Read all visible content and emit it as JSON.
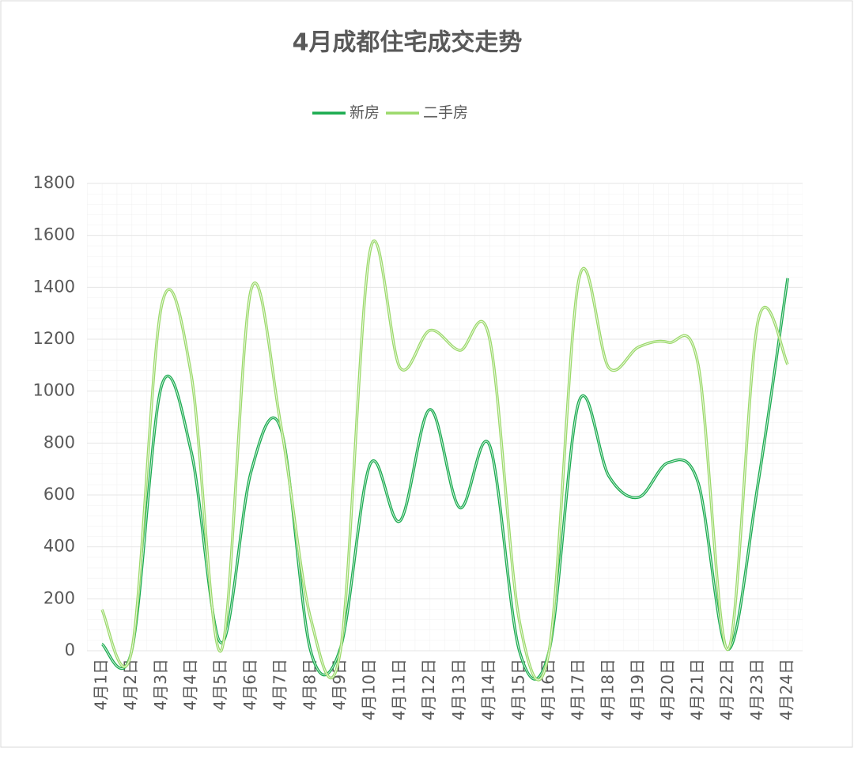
{
  "chart_data": {
    "type": "line",
    "title": "4月成都住宅成交走势",
    "categories": [
      "4月1日",
      "4月2日",
      "4月3日",
      "4月4日",
      "4月5日",
      "4月6日",
      "4月7日",
      "4月8日",
      "4月9日",
      "4月10日",
      "4月11日",
      "4月12日",
      "4月13日",
      "4月14日",
      "4月15日",
      "4月16日",
      "4月17日",
      "4月18日",
      "4月19日",
      "4月20日",
      "4月21日",
      "4月22日",
      "4月23日",
      "4月24日"
    ],
    "series": [
      {
        "name": "新房",
        "color": "#1aab4f",
        "values": [
          25,
          0,
          1020,
          765,
          30,
          688,
          856,
          0,
          10,
          719,
          500,
          929,
          551,
          792,
          0,
          0,
          960,
          673,
          591,
          725,
          646,
          5,
          640,
          1435
        ]
      },
      {
        "name": "二手房",
        "color": "#9bd96a",
        "values": [
          158,
          0,
          1328,
          1060,
          0,
          1389,
          870,
          125,
          0,
          1544,
          1090,
          1234,
          1157,
          1203,
          116,
          0,
          1432,
          1090,
          1170,
          1188,
          1100,
          5,
          1267,
          1103
        ]
      }
    ],
    "ylim": [
      0,
      1800
    ],
    "yticks": [
      0,
      200,
      400,
      600,
      800,
      1000,
      1200,
      1400,
      1600,
      1800
    ],
    "grid": true,
    "legend": "top"
  }
}
